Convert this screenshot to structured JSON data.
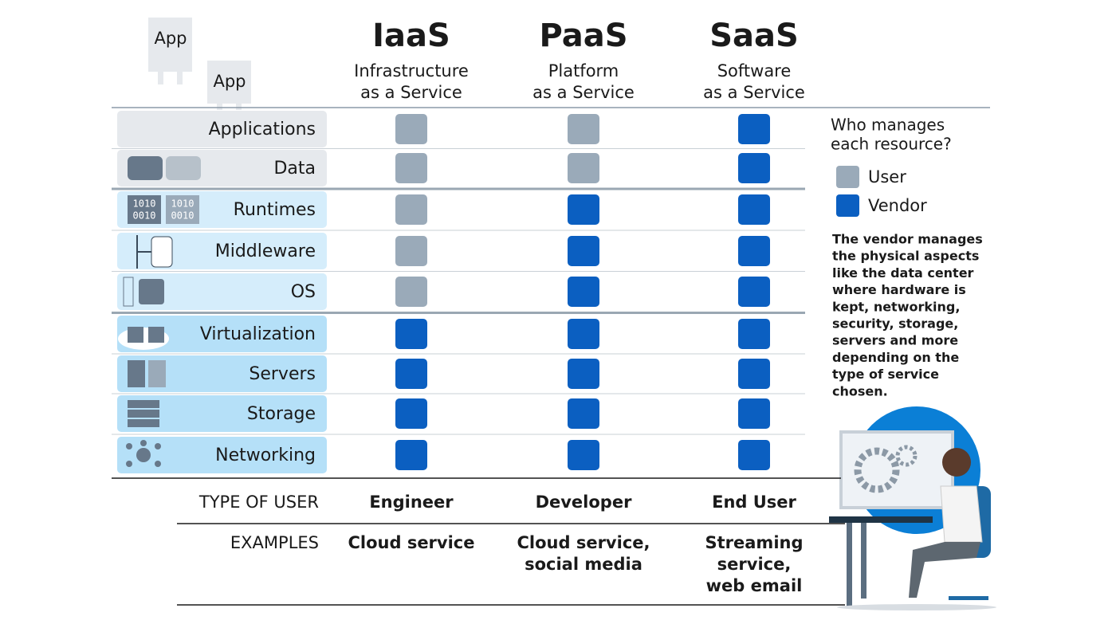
{
  "app_icons": [
    "App",
    "App"
  ],
  "binary_icon": [
    "1010",
    "0010"
  ],
  "columns": [
    {
      "title": "IaaS",
      "subtitle": [
        "Infrastructure",
        "as a Service"
      ]
    },
    {
      "title": "PaaS",
      "subtitle": [
        "Platform",
        "as a Service"
      ]
    },
    {
      "title": "SaaS",
      "subtitle": [
        "Software",
        "as a Service"
      ]
    }
  ],
  "rows": [
    "Applications",
    "Data",
    "Runtimes",
    "Middleware",
    "OS",
    "Virtualization",
    "Servers",
    "Storage",
    "Networking"
  ],
  "managed_by": [
    [
      0,
      0,
      1
    ],
    [
      0,
      0,
      1
    ],
    [
      0,
      1,
      1
    ],
    [
      0,
      1,
      1
    ],
    [
      0,
      1,
      1
    ],
    [
      1,
      1,
      1
    ],
    [
      1,
      1,
      1
    ],
    [
      1,
      1,
      1
    ],
    [
      1,
      1,
      1
    ]
  ],
  "legend": {
    "title": [
      "Who manages",
      "each resource?"
    ],
    "items": [
      {
        "label": "User",
        "color": "#9aaab9"
      },
      {
        "label": "Vendor",
        "color": "#0b5fc1"
      }
    ]
  },
  "note": [
    "The vendor manages",
    "the physical aspects",
    "like the data center",
    "where hardware is",
    "kept, networking,",
    "security, storage,",
    "servers and more",
    "depending on the",
    "type of service",
    "chosen."
  ],
  "footer": [
    {
      "label": "TYPE OF USER",
      "cells": [
        [
          "Engineer"
        ],
        [
          "Developer"
        ],
        [
          "End User"
        ]
      ]
    },
    {
      "label": "EXAMPLES",
      "cells": [
        [
          "Cloud service"
        ],
        [
          "Cloud service,",
          "social media"
        ],
        [
          "Streaming",
          "service,",
          "web email"
        ]
      ]
    }
  ]
}
